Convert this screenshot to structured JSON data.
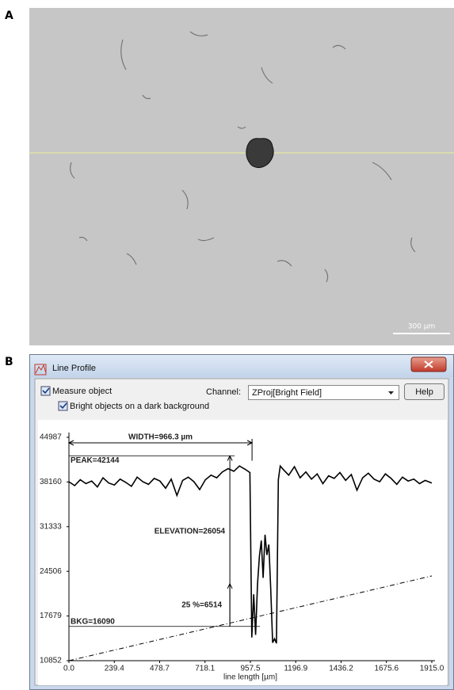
{
  "panel_labels": [
    "A",
    "B"
  ],
  "scale_bar": "300 µm",
  "window": {
    "title": "Line Profile",
    "measure_object": "Measure object",
    "bright_objects": "Bright objects on a dark background",
    "channel_label": "Channel:",
    "channel_value": "ZProj[Bright Field]",
    "help": "Help"
  },
  "chart_data": {
    "type": "line",
    "xlabel": "line length [µm]",
    "x": [
      0,
      30,
      60,
      90,
      120,
      150,
      180,
      210,
      240,
      270,
      300,
      330,
      360,
      390,
      420,
      450,
      480,
      510,
      540,
      570,
      600,
      630,
      660,
      690,
      720,
      750,
      780,
      810,
      840,
      870,
      900,
      930,
      955,
      965,
      975,
      985,
      995,
      1005,
      1015,
      1025,
      1035,
      1045,
      1055,
      1065,
      1075,
      1085,
      1095,
      1105,
      1115,
      1130,
      1160,
      1190,
      1220,
      1250,
      1280,
      1310,
      1340,
      1370,
      1400,
      1430,
      1460,
      1490,
      1520,
      1550,
      1580,
      1610,
      1640,
      1670,
      1700,
      1730,
      1760,
      1790,
      1820,
      1850,
      1880,
      1915
    ],
    "series": [
      {
        "color": "#000000",
        "values": [
          38200,
          37600,
          38500,
          37900,
          38300,
          37400,
          38800,
          38000,
          37700,
          38600,
          38100,
          37500,
          38900,
          38200,
          37800,
          38700,
          38300,
          37200,
          38600,
          36100,
          38400,
          38900,
          38200,
          37000,
          38500,
          39200,
          38800,
          39700,
          40200,
          39800,
          40600,
          40100,
          39600,
          14400,
          21000,
          14800,
          22500,
          26800,
          29200,
          23500,
          30100,
          27000,
          28600,
          21800,
          13600,
          14200,
          13500,
          38500,
          40600,
          40100,
          39200,
          40500,
          38800,
          39700,
          38600,
          39400,
          37900,
          39100,
          38700,
          39600,
          38400,
          39300,
          36900,
          38800,
          39500,
          38600,
          38200,
          39400,
          38700,
          37800,
          38900,
          38300,
          38600,
          37900,
          38400,
          38000
        ]
      }
    ],
    "baseline": {
      "color": "#000000",
      "x": [
        0,
        1915
      ],
      "values": [
        10852,
        23800
      ]
    },
    "annotations": {
      "width": {
        "value": 966.3,
        "label": "WIDTH=966.3 µm"
      },
      "peak": {
        "value": 42144,
        "label": "PEAK=42144"
      },
      "elevation": {
        "value": 26054,
        "label": "ELEVATION=26054"
      },
      "quarter": {
        "value": 6514,
        "label": "25 %=6514"
      },
      "bkg": {
        "value": 16090,
        "label": "BKG=16090"
      }
    },
    "xlim": [
      0,
      1915
    ],
    "xticks": [
      {
        "value": 0,
        "label": "0.0"
      },
      239.4,
      478.7,
      718.1,
      957.5,
      1196.9,
      1436.2,
      1675.6,
      {
        "value": 1915,
        "label": "1915.0"
      }
    ],
    "ylim": [
      10852,
      44987
    ],
    "yticks": [
      10852,
      17679,
      24506,
      31333,
      38160,
      44987
    ]
  }
}
